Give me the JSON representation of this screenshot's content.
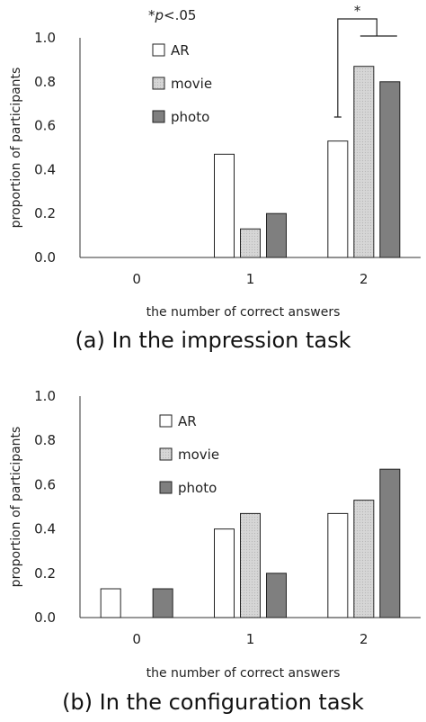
{
  "chart_data": [
    {
      "type": "bar",
      "caption": "(a) In the impression task",
      "note_star": "*",
      "note_p": "p",
      "note_rest": "<.05",
      "sig_marker": "*",
      "categories": [
        "0",
        "1",
        "2"
      ],
      "series": [
        {
          "name": "AR",
          "values": [
            0,
            0.47,
            0.53
          ]
        },
        {
          "name": "movie",
          "values": [
            0,
            0.13,
            0.87
          ]
        },
        {
          "name": "photo",
          "values": [
            0,
            0.2,
            0.8
          ]
        }
      ],
      "xlabel": "the number of correct answers",
      "ylabel": "proportion of participants",
      "ylim": [
        0,
        1.0
      ],
      "yticks": [
        "0.0",
        "0.2",
        "0.4",
        "0.6",
        "0.8",
        "1.0"
      ],
      "legend_position": "top-left"
    },
    {
      "type": "bar",
      "caption": "(b) In the configuration task",
      "categories": [
        "0",
        "1",
        "2"
      ],
      "series": [
        {
          "name": "AR",
          "values": [
            0.13,
            0.4,
            0.47
          ]
        },
        {
          "name": "movie",
          "values": [
            0,
            0.47,
            0.53
          ]
        },
        {
          "name": "photo",
          "values": [
            0.13,
            0.2,
            0.67
          ]
        }
      ],
      "xlabel": "the number of correct answers",
      "ylabel": "proportion of participants",
      "ylim": [
        0,
        1.0
      ],
      "yticks": [
        "0.0",
        "0.2",
        "0.4",
        "0.6",
        "0.8",
        "1.0"
      ],
      "legend_position": "top-left"
    }
  ],
  "colors": {
    "AR": "#ffffff",
    "movie": "#d4d4d4",
    "photo": "#7f7f7f",
    "stroke": "#222222"
  }
}
